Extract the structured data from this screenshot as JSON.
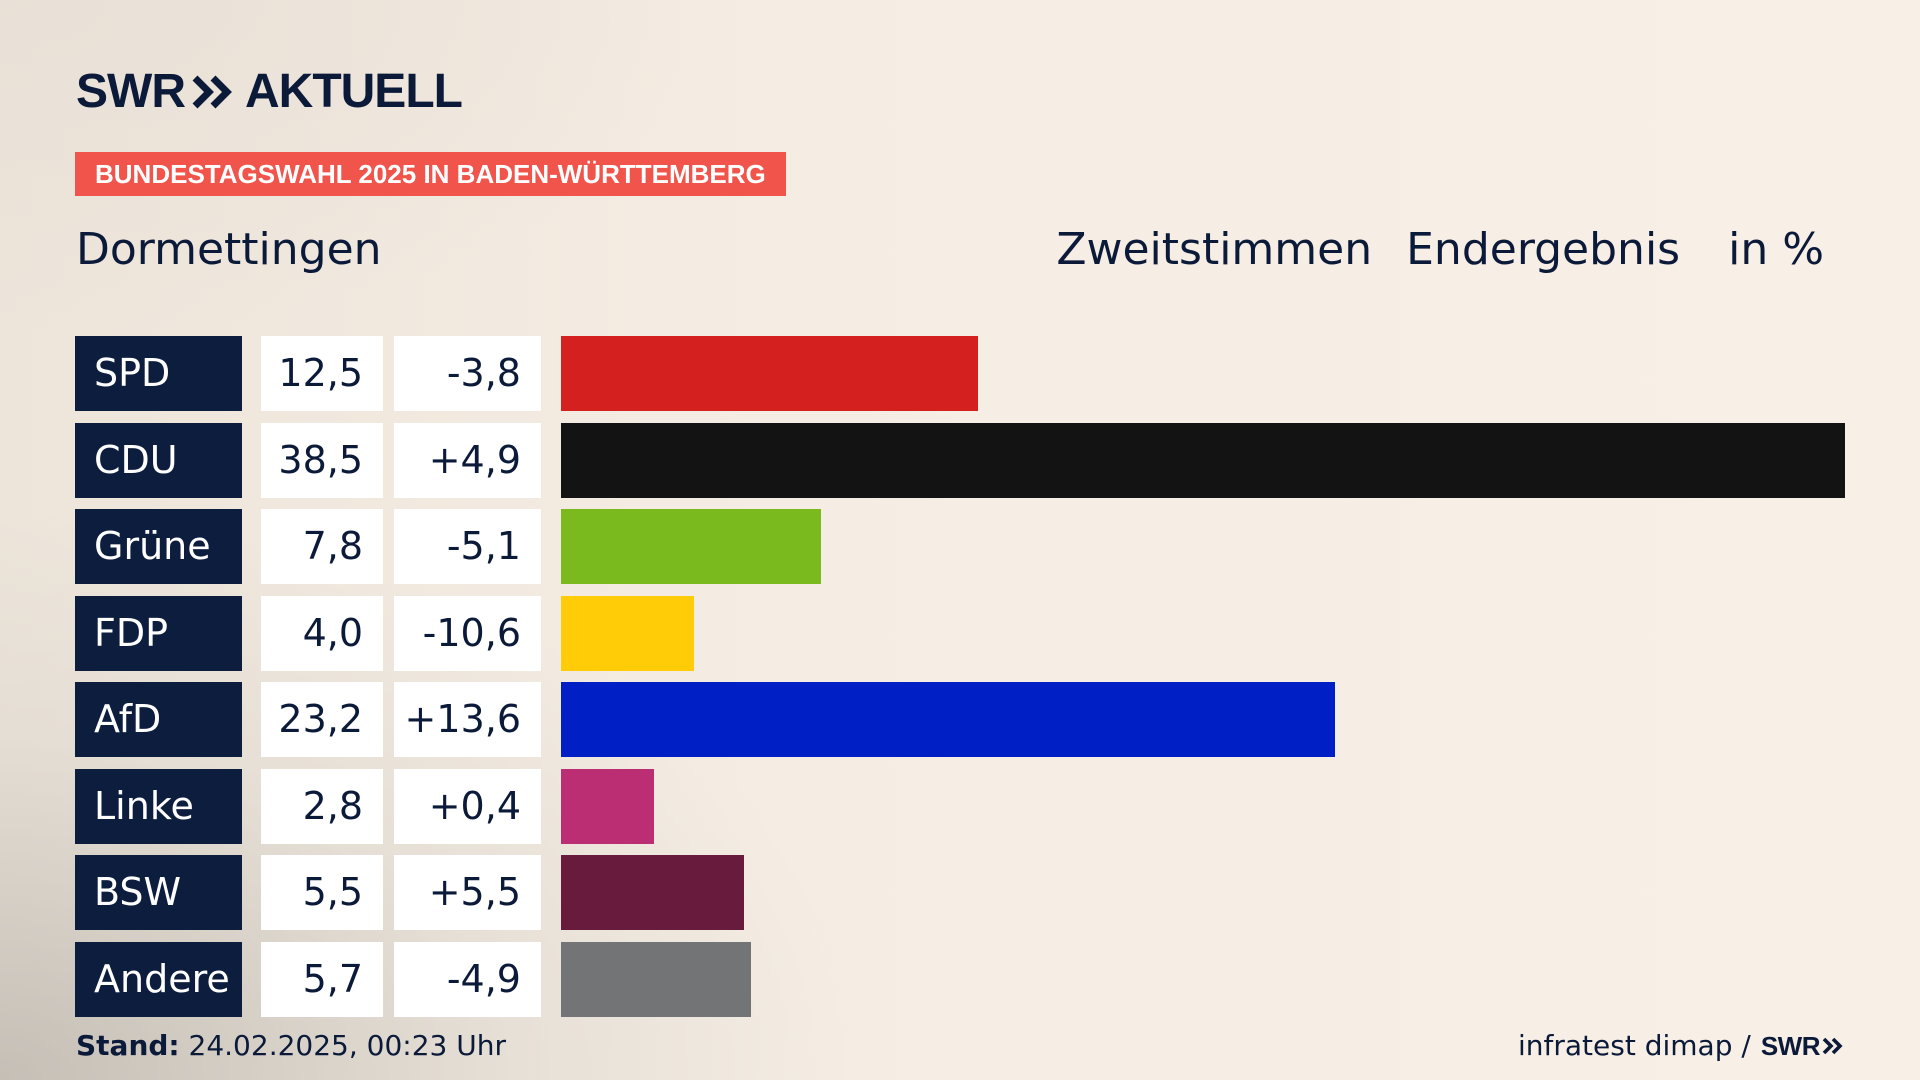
{
  "header": {
    "logo_swr": "SWR",
    "logo_aktuell": "AKTUELL",
    "badge": "BUNDESTAGSWAHL 2025 IN BADEN-WÜRTTEMBERG",
    "place": "Dormettingen",
    "vote_type": "Zweitstimmen",
    "result_type": "Endergebnis",
    "unit": "in %"
  },
  "colors": {
    "navy": "#0c1d3e",
    "badge": "#f0544a",
    "background": "#f8f0e6"
  },
  "chart_data": {
    "type": "bar",
    "orientation": "horizontal",
    "categories": [
      "SPD",
      "CDU",
      "Grüne",
      "FDP",
      "AfD",
      "Linke",
      "BSW",
      "Andere"
    ],
    "series": [
      {
        "values": [
          12.5,
          38.5,
          7.8,
          4.0,
          23.2,
          2.8,
          5.5,
          5.7
        ]
      }
    ],
    "value_labels": [
      "12,5",
      "38,5",
      "7,8",
      "4,0",
      "23,2",
      "2,8",
      "5,5",
      "5,7"
    ],
    "change_labels": [
      "-3,8",
      "+4,9",
      "-5,1",
      "-10,6",
      "+13,6",
      "+0,4",
      "+5,5",
      "-4,9"
    ],
    "changes": [
      -3.8,
      4.9,
      -5.1,
      -10.6,
      13.6,
      0.4,
      5.5,
      -4.9
    ],
    "bar_colors": [
      "#d52020",
      "#131313",
      "#7aba1e",
      "#ffcc07",
      "#0020c6",
      "#bb2e74",
      "#681b3d",
      "#737475"
    ],
    "xlim": [
      0,
      38.5
    ],
    "grid": false,
    "legend": "none"
  },
  "footer": {
    "stand_label": "Stand:",
    "stand_value": "24.02.2025, 00:23 Uhr",
    "source": "infratest dimap /",
    "source_logo": "SWR"
  }
}
